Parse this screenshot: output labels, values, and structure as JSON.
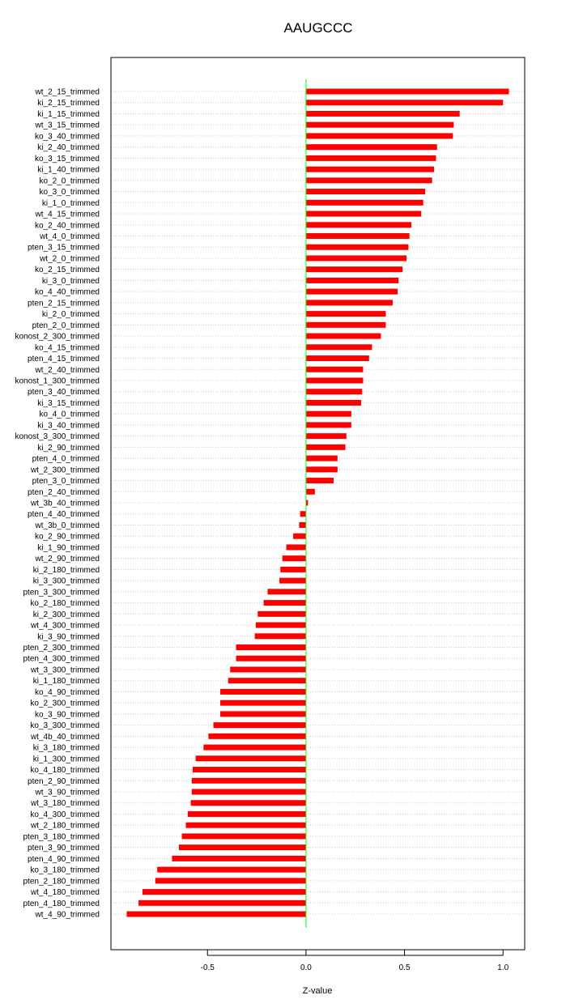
{
  "chart_data": {
    "type": "bar",
    "orientation": "horizontal",
    "title": "AAUGCCC",
    "xlabel": "Z-value",
    "ylabel": "",
    "xlim": [
      -0.99,
      1.11
    ],
    "x_ticks": [
      -0.5,
      0.0,
      0.5,
      1.0
    ],
    "x_tick_labels": [
      "-0.5",
      "0.0",
      "0.5",
      "1.0"
    ],
    "grid": "horizontal dotted",
    "bar_color": "#ff0000",
    "zero_line_color": "#00ff00",
    "categories": [
      "wt_2_15_trimmed",
      "ki_2_15_trimmed",
      "ki_1_15_trimmed",
      "wt_3_15_trimmed",
      "ko_3_40_trimmed",
      "ki_2_40_trimmed",
      "ko_3_15_trimmed",
      "ki_1_40_trimmed",
      "ko_2_0_trimmed",
      "ko_3_0_trimmed",
      "ki_1_0_trimmed",
      "wt_4_15_trimmed",
      "ko_2_40_trimmed",
      "wt_4_0_trimmed",
      "pten_3_15_trimmed",
      "wt_2_0_trimmed",
      "ko_2_15_trimmed",
      "ki_3_0_trimmed",
      "ko_4_40_trimmed",
      "pten_2_15_trimmed",
      "ki_2_0_trimmed",
      "pten_2_0_trimmed",
      "konost_2_300_trimmed",
      "ko_4_15_trimmed",
      "pten_4_15_trimmed",
      "wt_2_40_trimmed",
      "konost_1_300_trimmed",
      "pten_3_40_trimmed",
      "ki_3_15_trimmed",
      "ko_4_0_trimmed",
      "ki_3_40_trimmed",
      "konost_3_300_trimmed",
      "ki_2_90_trimmed",
      "pten_4_0_trimmed",
      "wt_2_300_trimmed",
      "pten_3_0_trimmed",
      "pten_2_40_trimmed",
      "wt_3b_40_trimmed",
      "pten_4_40_trimmed",
      "wt_3b_0_trimmed",
      "ko_2_90_trimmed",
      "ki_1_90_trimmed",
      "wt_2_90_trimmed",
      "ki_2_180_trimmed",
      "ki_3_300_trimmed",
      "pten_3_300_trimmed",
      "ko_2_180_trimmed",
      "ki_2_300_trimmed",
      "wt_4_300_trimmed",
      "ki_3_90_trimmed",
      "pten_2_300_trimmed",
      "pten_4_300_trimmed",
      "wt_3_300_trimmed",
      "ki_1_180_trimmed",
      "ko_4_90_trimmed",
      "ko_2_300_trimmed",
      "ko_3_90_trimmed",
      "ko_3_300_trimmed",
      "wt_4b_40_trimmed",
      "ki_3_180_trimmed",
      "ki_1_300_trimmed",
      "ko_4_180_trimmed",
      "pten_2_90_trimmed",
      "wt_3_90_trimmed",
      "wt_3_180_trimmed",
      "ko_4_300_trimmed",
      "wt_2_180_trimmed",
      "pten_3_180_trimmed",
      "pten_3_90_trimmed",
      "pten_4_90_trimmed",
      "ko_3_180_trimmed",
      "pten_2_180_trimmed",
      "wt_4_180_trimmed",
      "pten_4_180_trimmed",
      "wt_4_90_trimmed"
    ],
    "values": [
      1.03,
      1.0,
      0.78,
      0.75,
      0.745,
      0.665,
      0.66,
      0.65,
      0.64,
      0.605,
      0.595,
      0.585,
      0.535,
      0.525,
      0.52,
      0.51,
      0.49,
      0.47,
      0.465,
      0.44,
      0.405,
      0.405,
      0.38,
      0.335,
      0.32,
      0.29,
      0.29,
      0.285,
      0.28,
      0.23,
      0.23,
      0.205,
      0.2,
      0.16,
      0.16,
      0.14,
      0.045,
      0.01,
      -0.03,
      -0.035,
      -0.065,
      -0.1,
      -0.12,
      -0.13,
      -0.135,
      -0.195,
      -0.215,
      -0.245,
      -0.255,
      -0.26,
      -0.355,
      -0.355,
      -0.385,
      -0.395,
      -0.435,
      -0.435,
      -0.435,
      -0.47,
      -0.495,
      -0.52,
      -0.56,
      -0.575,
      -0.58,
      -0.58,
      -0.585,
      -0.6,
      -0.61,
      -0.63,
      -0.645,
      -0.68,
      -0.755,
      -0.765,
      -0.83,
      -0.85,
      -0.91
    ]
  }
}
